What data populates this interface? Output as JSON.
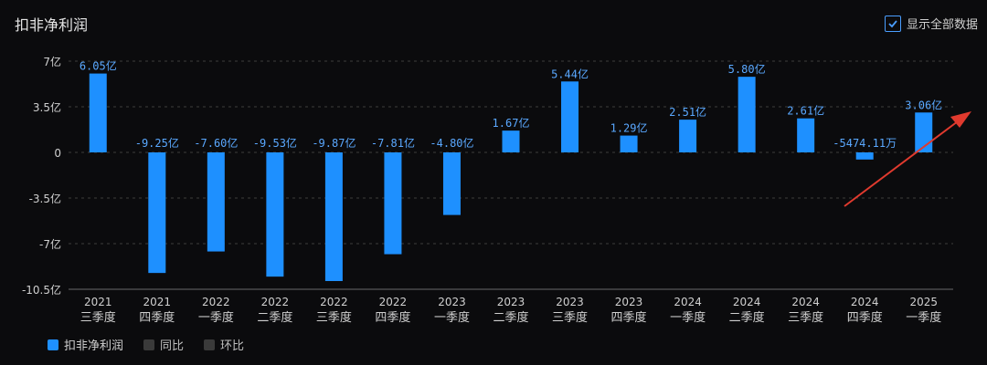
{
  "header": {
    "title": "扣非净利润"
  },
  "toggle": {
    "label": "显示全部数据",
    "checked": true
  },
  "legend": {
    "items": [
      {
        "label": "扣非净利润",
        "color": "#1e90ff",
        "active": true
      },
      {
        "label": "同比",
        "color": "#3a3a3a",
        "active": false
      },
      {
        "label": "环比",
        "color": "#3a3a3a",
        "active": false
      }
    ]
  },
  "colors": {
    "bar": "#1e90ff",
    "label": "#5aa8ff",
    "grid": "#3c3c3c",
    "axis": "#cfcfcf",
    "arrow": "#e03a2e"
  },
  "chart_data": {
    "type": "bar",
    "ylim": [
      -10.5,
      7
    ],
    "yticks": [
      7,
      3.5,
      0,
      -3.5,
      -7,
      -10.5
    ],
    "ytick_labels": [
      "7亿",
      "3.5亿",
      "0",
      "-3.5亿",
      "-7亿",
      "-10.5亿"
    ],
    "categories": [
      [
        "2021",
        "三季度"
      ],
      [
        "2021",
        "四季度"
      ],
      [
        "2022",
        "一季度"
      ],
      [
        "2022",
        "二季度"
      ],
      [
        "2022",
        "三季度"
      ],
      [
        "2022",
        "四季度"
      ],
      [
        "2023",
        "一季度"
      ],
      [
        "2023",
        "二季度"
      ],
      [
        "2023",
        "三季度"
      ],
      [
        "2023",
        "四季度"
      ],
      [
        "2024",
        "一季度"
      ],
      [
        "2024",
        "二季度"
      ],
      [
        "2024",
        "三季度"
      ],
      [
        "2024",
        "四季度"
      ],
      [
        "2025",
        "一季度"
      ]
    ],
    "series": [
      {
        "name": "扣非净利润",
        "values": [
          6.05,
          -9.25,
          -7.6,
          -9.53,
          -9.87,
          -7.81,
          -4.8,
          1.67,
          5.44,
          1.29,
          2.51,
          5.8,
          2.61,
          -0.5474,
          3.06
        ],
        "labels": [
          "6.05亿",
          "-9.25亿",
          "-7.60亿",
          "-9.53亿",
          "-9.87亿",
          "-7.81亿",
          "-4.80亿",
          "1.67亿",
          "5.44亿",
          "1.29亿",
          "2.51亿",
          "5.80亿",
          "2.61亿",
          "-5474.11万",
          "3.06亿"
        ]
      }
    ]
  }
}
